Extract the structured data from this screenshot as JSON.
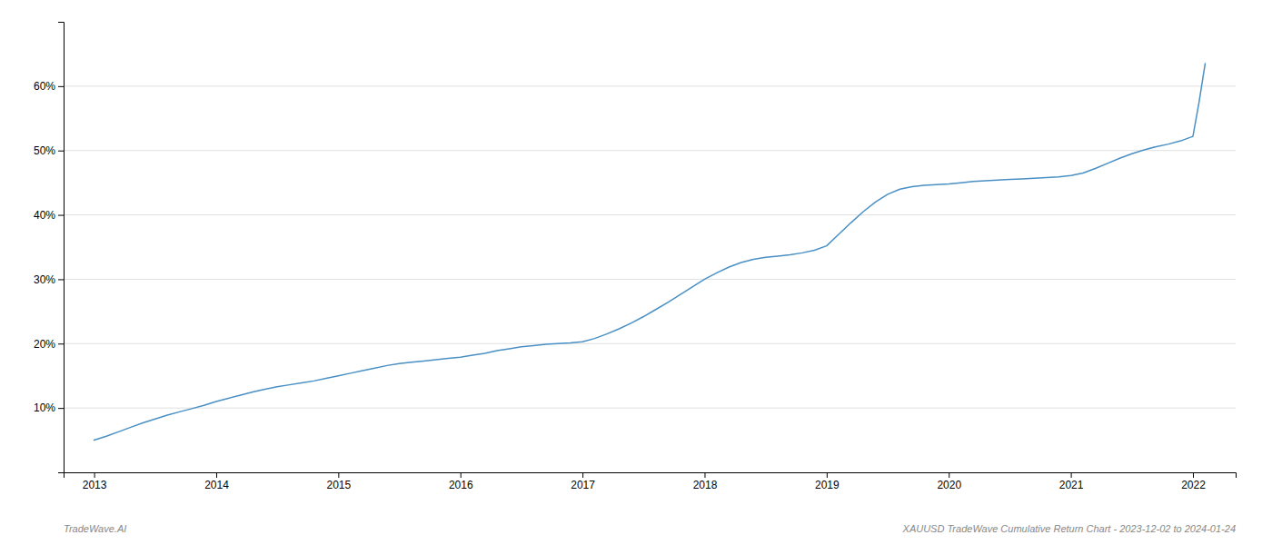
{
  "chart_data": {
    "type": "line",
    "color": "#4a90c4",
    "x": [
      2013.0,
      2013.1,
      2013.2,
      2013.3,
      2013.4,
      2013.5,
      2013.6,
      2013.7,
      2013.8,
      2013.9,
      2014.0,
      2014.1,
      2014.2,
      2014.3,
      2014.4,
      2014.5,
      2014.6,
      2014.7,
      2014.8,
      2014.9,
      2015.0,
      2015.1,
      2015.2,
      2015.3,
      2015.4,
      2015.5,
      2015.6,
      2015.7,
      2015.8,
      2015.9,
      2016.0,
      2016.1,
      2016.2,
      2016.3,
      2016.4,
      2016.5,
      2016.6,
      2016.7,
      2016.8,
      2016.9,
      2017.0,
      2017.1,
      2017.2,
      2017.3,
      2017.4,
      2017.5,
      2017.6,
      2017.7,
      2017.8,
      2017.9,
      2018.0,
      2018.1,
      2018.2,
      2018.3,
      2018.4,
      2018.5,
      2018.6,
      2018.7,
      2018.8,
      2018.9,
      2019.0,
      2019.1,
      2019.2,
      2019.3,
      2019.4,
      2019.5,
      2019.6,
      2019.7,
      2019.8,
      2019.9,
      2020.0,
      2020.1,
      2020.2,
      2020.3,
      2020.4,
      2020.5,
      2020.6,
      2020.7,
      2020.8,
      2020.9,
      2021.0,
      2021.1,
      2021.2,
      2021.3,
      2021.4,
      2021.5,
      2021.6,
      2021.7,
      2021.8,
      2021.9,
      2022.0,
      2022.05,
      2022.1
    ],
    "values": [
      5.0,
      5.6,
      6.3,
      7.0,
      7.7,
      8.3,
      8.9,
      9.4,
      9.9,
      10.4,
      11.0,
      11.5,
      12.0,
      12.5,
      12.9,
      13.3,
      13.6,
      13.9,
      14.2,
      14.6,
      15.0,
      15.4,
      15.8,
      16.2,
      16.6,
      16.9,
      17.1,
      17.3,
      17.5,
      17.7,
      17.9,
      18.2,
      18.5,
      18.9,
      19.2,
      19.5,
      19.7,
      19.9,
      20.0,
      20.1,
      20.3,
      20.8,
      21.5,
      22.3,
      23.2,
      24.2,
      25.3,
      26.4,
      27.6,
      28.8,
      30.0,
      31.0,
      31.9,
      32.6,
      33.1,
      33.4,
      33.6,
      33.8,
      34.1,
      34.5,
      35.2,
      37.0,
      38.8,
      40.5,
      42.0,
      43.2,
      44.0,
      44.4,
      44.6,
      44.7,
      44.8,
      45.0,
      45.2,
      45.3,
      45.4,
      45.5,
      45.6,
      45.7,
      45.8,
      45.9,
      46.1,
      46.5,
      47.2,
      48.0,
      48.8,
      49.5,
      50.1,
      50.6,
      51.0,
      51.5,
      52.2,
      57.5,
      63.5
    ],
    "xlim": [
      2012.75,
      2022.35
    ],
    "xticks": [
      2013,
      2014,
      2015,
      2016,
      2017,
      2018,
      2019,
      2020,
      2021,
      2022
    ],
    "ylim": [
      0,
      70
    ],
    "yticks": [
      {
        "value": 10,
        "label": "10%"
      },
      {
        "value": 20,
        "label": "20%"
      },
      {
        "value": 30,
        "label": "30%"
      },
      {
        "value": 40,
        "label": "40%"
      },
      {
        "value": 50,
        "label": "50%"
      },
      {
        "value": 60,
        "label": "60%"
      }
    ],
    "grid": "y",
    "annotations": [
      "TradeWave.AI",
      "XAUUSD TradeWave Cumulative Return Chart - 2023-12-02 to 2024-01-24"
    ]
  }
}
